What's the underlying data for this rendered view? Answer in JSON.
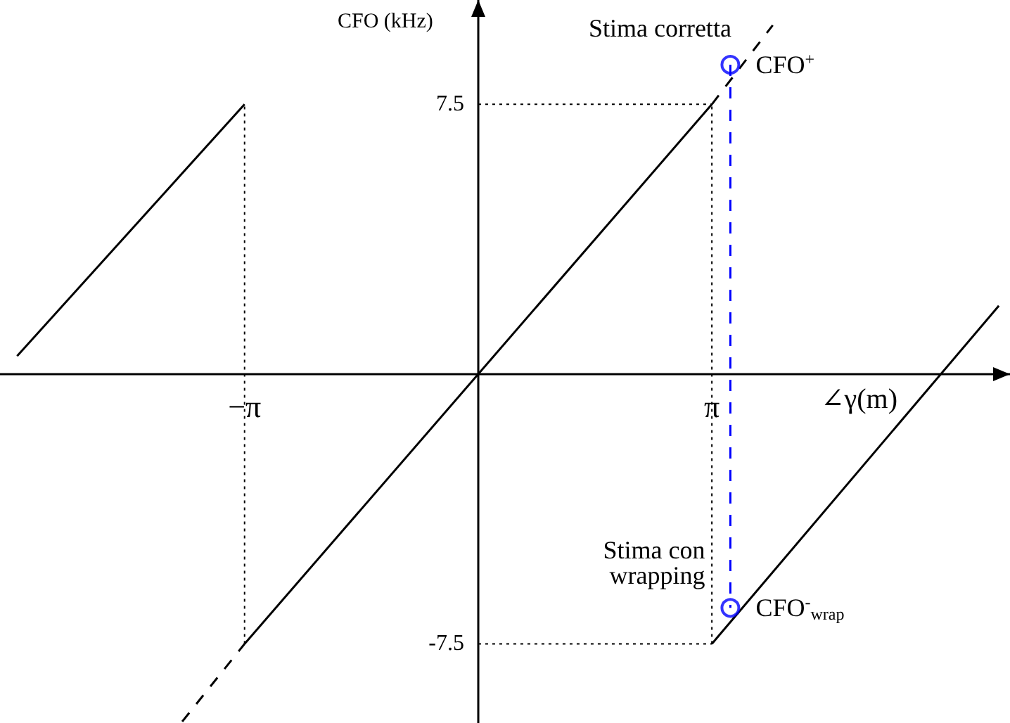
{
  "chart_data": {
    "type": "line",
    "xlabel": "∠γ(m)",
    "ylabel": "CFO (kHz)",
    "xlim": [
      -6.43,
      7.15
    ],
    "ylim": [
      -9.7,
      10.4
    ],
    "xticks": [
      {
        "value": -3.1416,
        "label": "−π"
      },
      {
        "value": 3.1416,
        "label": "π"
      }
    ],
    "yticks": [
      -7.5,
      7.5
    ],
    "grid": false,
    "marker": "none",
    "series": [
      {
        "color": "#000000",
        "x": [
          -6.2,
          -3.1416
        ],
        "values": [
          0.5,
          7.5
        ]
      },
      {
        "color": "#000000",
        "x": [
          -3.98,
          -3.1416
        ],
        "values": [
          -9.66,
          -7.5
        ],
        "line_style": "dashed"
      },
      {
        "color": "#000000",
        "x": [
          -3.1416,
          3.1416
        ],
        "values": [
          -7.5,
          7.5
        ]
      },
      {
        "color": "#000000",
        "x": [
          3.1416,
          3.96
        ],
        "values": [
          7.5,
          9.7
        ],
        "line_style": "dashed"
      },
      {
        "color": "#000000",
        "x": [
          3.1416,
          7.0
        ],
        "values": [
          -7.5,
          1.9
        ]
      },
      {
        "type": "line",
        "color": "#0000ff",
        "x": [
          3.39,
          3.39
        ],
        "values": [
          8.6,
          -6.5
        ],
        "line_style": "dashed"
      },
      {
        "type": "scatter",
        "color": "#0000ff",
        "x": [
          3.39,
          3.39
        ],
        "values": [
          8.6,
          -6.5
        ],
        "marker": "circle"
      }
    ],
    "ref_lines": [
      {
        "axis": "x",
        "value": -3.1416,
        "line_style": "dotted",
        "color": "#000000"
      },
      {
        "axis": "x",
        "value": 3.1416,
        "line_style": "dotted",
        "color": "#000000"
      },
      {
        "axis": "y",
        "value": 7.5,
        "line_style": "dotted",
        "color": "#000000"
      },
      {
        "axis": "y",
        "value": -7.5,
        "line_style": "dotted",
        "color": "#000000"
      }
    ],
    "annotations": [
      "Stima corretta",
      "Stima con wrapping",
      {
        "text": "CFO$^{+}$",
        "x": 3.39,
        "y": 8.6
      },
      {
        "text": "CFO$^{-}$$_{wrap}$",
        "x": 3.39,
        "y": -6.5
      }
    ]
  }
}
